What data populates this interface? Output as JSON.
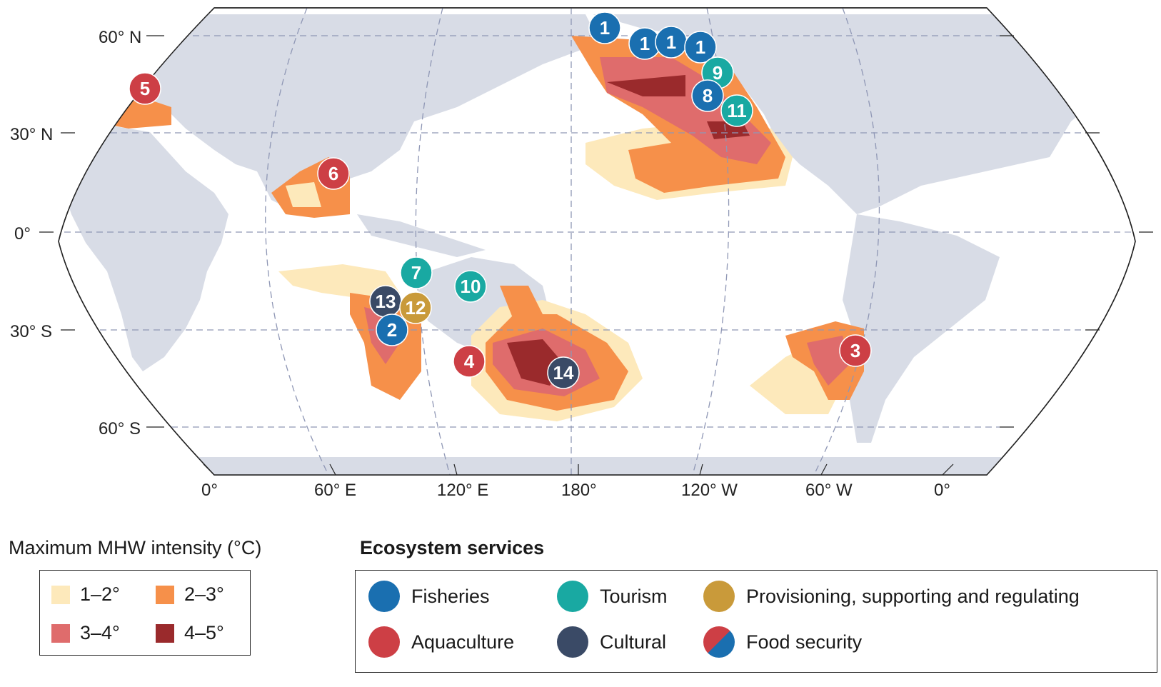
{
  "map": {
    "lat_labels": [
      "60° N",
      "30° N",
      "0°",
      "30° S",
      "60° S"
    ],
    "lon_labels": [
      "0°",
      "60° E",
      "120° E",
      "180°",
      "120° W",
      "60° W",
      "0°"
    ]
  },
  "colors": {
    "ocean": "#ffffff",
    "land": "#d8dce6",
    "graticule": "#8f97b5",
    "fisheries": "#1a6fb0",
    "tourism": "#19a9a2",
    "provisioning": "#c99a3a",
    "aquaculture": "#cd3f45",
    "cultural": "#3a4a66",
    "mhw_1_2": "#fde9bb",
    "mhw_2_3": "#f6904a",
    "mhw_3_4": "#df6c6c",
    "mhw_4_5": "#9a2a2c"
  },
  "markers": [
    {
      "label": "1",
      "type": "fisheries"
    },
    {
      "label": "1",
      "type": "fisheries"
    },
    {
      "label": "1",
      "type": "fisheries"
    },
    {
      "label": "1",
      "type": "fisheries"
    },
    {
      "label": "9",
      "type": "tourism"
    },
    {
      "label": "8",
      "type": "fisheries"
    },
    {
      "label": "11",
      "type": "tourism"
    },
    {
      "label": "5",
      "type": "aquaculture"
    },
    {
      "label": "6",
      "type": "aquaculture"
    },
    {
      "label": "7",
      "type": "tourism"
    },
    {
      "label": "10",
      "type": "tourism"
    },
    {
      "label": "13",
      "type": "cultural"
    },
    {
      "label": "12",
      "type": "provisioning"
    },
    {
      "label": "2",
      "type": "fisheries"
    },
    {
      "label": "4",
      "type": "aquaculture"
    },
    {
      "label": "14",
      "type": "cultural"
    },
    {
      "label": "3",
      "type": "aquaculture"
    }
  ],
  "legend": {
    "intensity_title": "Maximum MHW intensity (°C)",
    "intensity_items": [
      "1–2°",
      "2–3°",
      "3–4°",
      "4–5°"
    ],
    "services_title": "Ecosystem services",
    "services": {
      "fisheries": "Fisheries",
      "tourism": "Tourism",
      "provisioning": "Provisioning, supporting and regulating",
      "aquaculture": "Aquaculture",
      "cultural": "Cultural",
      "food_security": "Food security"
    }
  }
}
